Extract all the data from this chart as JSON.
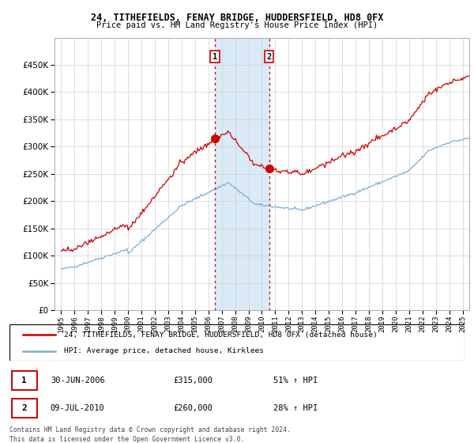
{
  "title1": "24, TITHEFIELDS, FENAY BRIDGE, HUDDERSFIELD, HD8 0FX",
  "title2": "Price paid vs. HM Land Registry's House Price Index (HPI)",
  "sale1_date": "30-JUN-2006",
  "sale1_price": 315000,
  "sale1_label": "51% ↑ HPI",
  "sale1_year": 2006.5,
  "sale2_date": "09-JUL-2010",
  "sale2_price": 260000,
  "sale2_label": "28% ↑ HPI",
  "sale2_year": 2010.54,
  "legend1": "24, TITHEFIELDS, FENAY BRIDGE, HUDDERSFIELD, HD8 0FX (detached house)",
  "legend2": "HPI: Average price, detached house, Kirklees",
  "footnote1": "Contains HM Land Registry data © Crown copyright and database right 2024.",
  "footnote2": "This data is licensed under the Open Government Licence v3.0.",
  "house_color": "#cc0000",
  "hpi_color": "#7ab0d4",
  "shaded_color": "#daeaf7",
  "vline_color": "#cc0000",
  "ylim_max": 500000,
  "yticks": [
    0,
    50000,
    100000,
    150000,
    200000,
    250000,
    300000,
    350000,
    400000,
    450000
  ],
  "xlim_start": 1994.5,
  "xlim_end": 2025.5
}
